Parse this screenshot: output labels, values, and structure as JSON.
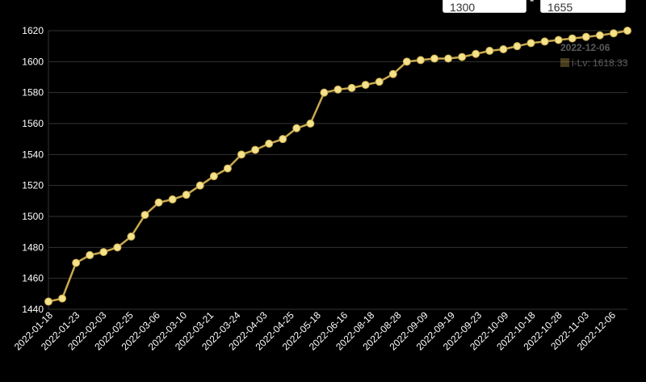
{
  "controls": {
    "min_value": "1300",
    "max_value": "1655",
    "separator": "-"
  },
  "tooltip": {
    "date": "2022-12-06",
    "series_label": "i-Lv",
    "value_text": "i-Lv: 1618.33"
  },
  "colors": {
    "background": "#000000",
    "line": "#C9A94F",
    "point": "#F5E38B",
    "grid": "#333333",
    "text": "#ffffff"
  },
  "chart_data": {
    "type": "line",
    "ylim": [
      1440,
      1620
    ],
    "y_ticks": [
      1440,
      1460,
      1480,
      1500,
      1520,
      1540,
      1560,
      1580,
      1600,
      1620
    ],
    "x_tick_labels": [
      "2022-01-18",
      "2022-01-23",
      "2022-02-03",
      "2022-02-25",
      "2022-03-06",
      "2022-03-10",
      "2022-03-21",
      "2022-03-24",
      "2022-04-03",
      "2022-04-25",
      "2022-05-18",
      "2022-06-16",
      "2022-08-18",
      "2022-08-28",
      "2022-09-09",
      "2022-09-19",
      "2022-09-23",
      "2022-10-09",
      "2022-10-18",
      "2022-10-28",
      "2022-11-03",
      "2022-12-06"
    ],
    "series": [
      {
        "name": "i-Lv",
        "values": [
          1445,
          1447,
          1470,
          1475,
          1477,
          1480,
          1487,
          1501,
          1509,
          1511,
          1514,
          1520,
          1526,
          1531,
          1540,
          1543,
          1547,
          1550,
          1557,
          1560,
          1580,
          1582,
          1583,
          1585,
          1587,
          1592,
          1600,
          1601,
          1602,
          1602,
          1603,
          1605,
          1607,
          1608,
          1610,
          1612,
          1613,
          1614,
          1615,
          1616,
          1617,
          1618.33,
          1620
        ]
      }
    ]
  }
}
